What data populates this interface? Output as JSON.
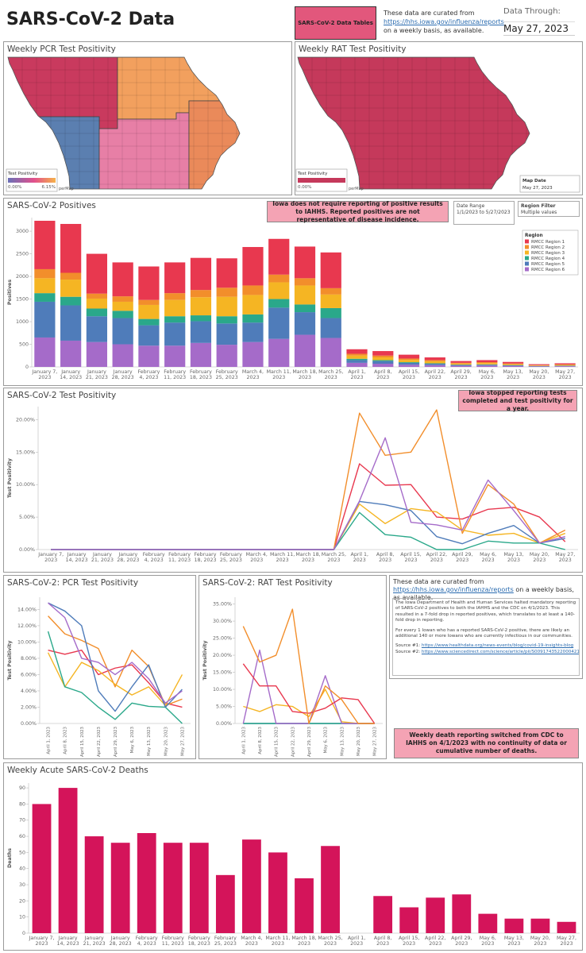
{
  "header": {
    "title": "SARS-CoV-2 Data",
    "button": "SARS-CoV-2 Data Tables",
    "intro": "These data are curated from",
    "link": "https://hhs.iowa.gov/influenza/reports",
    "intro_end": "on a weekly basis, as available.",
    "data_through_label": "Data Through:",
    "data_through": "May 27, 2023"
  },
  "maps": [
    {
      "title": "Weekly PCR Test Positivity",
      "legend_title": "Test Positivity",
      "legend_min": "0.00%",
      "legend_max": "6.15%",
      "attribution": "perMap"
    },
    {
      "title": "Weekly RAT Test Positivity",
      "legend_title": "Test Positivity",
      "legend_min": "0.00%",
      "attribution": "perMap",
      "map_date_label": "Map Date",
      "map_date": "May 27, 2023"
    }
  ],
  "filters": {
    "date_range_label": "Date Range",
    "date_range": "1/1/2023 to 5/27/2023",
    "region_filter_label": "Region Filter",
    "region_filter": "Multiple values"
  },
  "info": {
    "intro": "These data are curated from",
    "link": "https://hhs.iowa.gov/influenza/reports",
    "intro_end": "on a weekly basis, as available.",
    "paragraph1": "The Iowa Department of Health and Human Services halted mandatory reporting of SARS-CoV-2 positives to both the IAHHS and the CDC on 4/1/2023. This resulted in a 7-fold drop in reported positives, which translates to at least a 140-fold drop in reporting.",
    "paragraph2": "For every 1 Iowan who has a reported SARS-CoV-2 positive, there are likely an additional 140 or more Iowans who are currently infectious in our communities.",
    "source1_label": "Source #1:",
    "source1": "https://www.healthdata.org/news-events/blog/covid-19-insights-blog",
    "source2_label": "Source #2:",
    "source2": "https://www.sciencedirect.com/science/article/pii/S0091743522000421"
  },
  "chart_data": [
    {
      "type": "bar",
      "stacked": true,
      "title": "SARS-CoV-2 Positives",
      "y_label": "Positives",
      "annotation": "Iowa does not require reporting of positive results to IAHHS. Reported positives are not representative of disease incidence.",
      "legend_title": "Region",
      "categories": [
        "January 7, 2023",
        "January 14, 2023",
        "January 21, 2023",
        "January 28, 2023",
        "February 4, 2023",
        "February 11, 2023",
        "February 18, 2023",
        "February 25, 2023",
        "March 4, 2023",
        "March 11, 2023",
        "March 18, 2023",
        "March 25, 2023",
        "April 1, 2023",
        "April 8, 2023",
        "April 15, 2023",
        "April 22, 2023",
        "April 29, 2023",
        "May 6, 2023",
        "May 13, 2023",
        "May 20, 2023",
        "May 27, 2023"
      ],
      "series": [
        {
          "name": "RMCC Region 1",
          "color": "#e8384f",
          "values": [
            1070,
            1080,
            880,
            750,
            740,
            680,
            710,
            650,
            850,
            790,
            700,
            790,
            100,
            100,
            85,
            60,
            40,
            45,
            35,
            20,
            25
          ]
        },
        {
          "name": "RMCC Region 2",
          "color": "#f28e2b",
          "values": [
            200,
            150,
            110,
            120,
            110,
            150,
            160,
            200,
            210,
            170,
            160,
            140,
            40,
            40,
            30,
            25,
            15,
            20,
            15,
            9,
            12
          ]
        },
        {
          "name": "RMCC Region 3",
          "color": "#f5b523",
          "values": [
            330,
            380,
            220,
            200,
            310,
            360,
            400,
            430,
            430,
            370,
            420,
            300,
            70,
            60,
            50,
            45,
            25,
            30,
            20,
            10,
            15
          ]
        },
        {
          "name": "RMCC Region 4",
          "color": "#2aa88a",
          "values": [
            190,
            190,
            170,
            160,
            140,
            140,
            130,
            160,
            180,
            190,
            170,
            220,
            30,
            20,
            15,
            10,
            5,
            5,
            5,
            3,
            3
          ]
        },
        {
          "name": "RMCC Region 5",
          "color": "#4f7cba",
          "values": [
            790,
            780,
            570,
            580,
            450,
            510,
            480,
            470,
            430,
            690,
            500,
            440,
            60,
            60,
            40,
            30,
            20,
            20,
            15,
            8,
            10
          ]
        },
        {
          "name": "RMCC Region 6",
          "color": "#a56bc9",
          "values": [
            650,
            580,
            550,
            500,
            470,
            470,
            530,
            490,
            550,
            620,
            710,
            640,
            90,
            70,
            50,
            40,
            25,
            30,
            20,
            10,
            15
          ]
        }
      ],
      "ylim": [
        0,
        3300
      ],
      "yticks": [
        0,
        500,
        1000,
        1500,
        2000,
        2500,
        3000
      ]
    },
    {
      "type": "line",
      "title": "SARS-CoV-2 Test Positivity",
      "y_label": "Test Positivity",
      "annotation": "Iowa stopped reporting tests completed and test positivity for a year.",
      "categories": [
        "January 7, 2023",
        "January 14, 2023",
        "January 21, 2023",
        "January 28, 2023",
        "February 4, 2023",
        "February 11, 2023",
        "February 18, 2023",
        "February 25, 2023",
        "March 4, 2023",
        "March 11, 2023",
        "March 18, 2023",
        "March 25, 2023",
        "April 1, 2023",
        "April 8, 2023",
        "April 15, 2023",
        "April 22, 2023",
        "April 29, 2023",
        "May 6, 2023",
        "May 13, 2023",
        "May 20, 2023",
        "May 27, 2023"
      ],
      "series": [
        {
          "color": "#e8384f",
          "values": [
            0,
            0,
            0,
            0,
            0,
            0,
            0,
            0,
            0,
            0,
            0,
            0,
            13.2,
            9.9,
            10,
            5,
            4.7,
            6.2,
            6.5,
            5,
            1.2
          ]
        },
        {
          "color": "#f28e2b",
          "values": [
            0,
            0,
            0,
            0,
            0,
            0,
            0,
            0,
            0,
            0,
            0,
            0,
            21,
            14.5,
            15,
            21.5,
            2.5,
            10,
            7,
            1,
            3
          ]
        },
        {
          "color": "#f5b523",
          "values": [
            0,
            0,
            0,
            0,
            0,
            0,
            0,
            0,
            0,
            0,
            0,
            0,
            7,
            4,
            6.3,
            5.8,
            3,
            2.2,
            2.5,
            1,
            2.5
          ]
        },
        {
          "color": "#2aa88a",
          "values": [
            0,
            0,
            0,
            0,
            0,
            0,
            0,
            0,
            0,
            0,
            0,
            0,
            5.7,
            2.3,
            1.9,
            0,
            0,
            1.3,
            1,
            1,
            0
          ]
        },
        {
          "color": "#4f7cba",
          "values": [
            0,
            0,
            0,
            0,
            0,
            0,
            0,
            0,
            0,
            0,
            0,
            0,
            7.4,
            6.9,
            6,
            2,
            0.9,
            2.5,
            3.7,
            1,
            1.7
          ]
        },
        {
          "color": "#a56bc9",
          "values": [
            0,
            0,
            0,
            0,
            0,
            0,
            0,
            0,
            0,
            0,
            0,
            0,
            7.5,
            17.2,
            4.2,
            3.8,
            3,
            10.7,
            6,
            1,
            2
          ]
        }
      ],
      "ylim": [
        0,
        22
      ],
      "yticks": [
        {
          "value": 0,
          "label": "0.00%"
        },
        {
          "value": 5,
          "label": "5.00%"
        },
        {
          "value": 10,
          "label": "10.00%"
        },
        {
          "value": 15,
          "label": "15.00%"
        },
        {
          "value": 20,
          "label": "20.00%"
        }
      ]
    },
    {
      "type": "line",
      "title": "SARS-CoV-2: PCR Test Positivity",
      "y_label": "Test Positivity",
      "categories": [
        "April 1, 2023",
        "April 8, 2023",
        "April 15, 2023",
        "April 22, 2023",
        "April 29, 2023",
        "May 6, 2023",
        "May 13, 2023",
        "May 20, 2023",
        "May 27, 2023"
      ],
      "series": [
        {
          "color": "#e8384f",
          "values": [
            9,
            8.5,
            9,
            6,
            6.8,
            7.2,
            5,
            2.5,
            2
          ]
        },
        {
          "color": "#f28e2b",
          "values": [
            13.2,
            11,
            10.2,
            9.2,
            4.5,
            9,
            7,
            2.2,
            3
          ]
        },
        {
          "color": "#f5b523",
          "values": [
            8.7,
            4.5,
            7.5,
            6.5,
            4.8,
            3.5,
            4.5,
            2.2,
            6
          ]
        },
        {
          "color": "#2aa88a",
          "values": [
            11.3,
            4.5,
            3.8,
            2,
            0.5,
            2.5,
            2.1,
            2,
            0
          ]
        },
        {
          "color": "#4f7cba",
          "values": [
            14.8,
            13.8,
            12,
            4,
            1.5,
            4.5,
            7.2,
            2,
            4.2
          ]
        },
        {
          "color": "#a56bc9",
          "values": [
            14.8,
            13,
            8,
            7.5,
            6,
            7.5,
            5.5,
            2.5,
            4
          ]
        }
      ],
      "ylim": [
        0,
        15.5
      ],
      "yticks": [
        {
          "value": 0,
          "label": "0.00%"
        },
        {
          "value": 2,
          "label": "2.00%"
        },
        {
          "value": 4,
          "label": "4.00%"
        },
        {
          "value": 6,
          "label": "6.00%"
        },
        {
          "value": 8,
          "label": "8.00%"
        },
        {
          "value": 10,
          "label": "10.00%"
        },
        {
          "value": 12,
          "label": "12.00%"
        },
        {
          "value": 14,
          "label": "14.00%"
        }
      ]
    },
    {
      "type": "line",
      "title": "SARS-CoV-2: RAT Test Positivity",
      "y_label": "Test Positivity",
      "categories": [
        "April 1, 2023",
        "April 8, 2023",
        "April 15, 2023",
        "April 22, 2023",
        "April 29, 2023",
        "May 6, 2023",
        "May 13, 2023",
        "May 20, 2023",
        "May 27, 2023"
      ],
      "series": [
        {
          "color": "#4f7cba",
          "values": [
            0,
            0,
            0,
            0,
            0,
            0,
            0,
            0,
            0
          ]
        },
        {
          "color": "#2aa88a",
          "values": [
            0,
            0,
            0,
            0,
            0,
            0,
            0,
            0,
            0
          ]
        },
        {
          "color": "#f5b523",
          "values": [
            5,
            3.5,
            5.5,
            5,
            2,
            10,
            0.5,
            0,
            0
          ]
        },
        {
          "color": "#a56bc9",
          "values": [
            0,
            21.5,
            0,
            0,
            0,
            14,
            0,
            0,
            0
          ]
        },
        {
          "color": "#e8384f",
          "values": [
            17.5,
            11,
            11,
            3.5,
            3,
            4.5,
            7.5,
            7,
            0
          ]
        },
        {
          "color": "#f28e2b",
          "values": [
            28.5,
            18,
            20,
            33.5,
            0,
            11,
            7,
            0,
            0
          ]
        }
      ],
      "ylim": [
        0,
        37
      ],
      "yticks": [
        {
          "value": 0,
          "label": "0.00%"
        },
        {
          "value": 5,
          "label": "5.00%"
        },
        {
          "value": 10,
          "label": "10.00%"
        },
        {
          "value": 15,
          "label": "15.00%"
        },
        {
          "value": 20,
          "label": "20.00%"
        },
        {
          "value": 25,
          "label": "25.00%"
        },
        {
          "value": 30,
          "label": "30.00%"
        },
        {
          "value": 35,
          "label": "35.00%"
        }
      ]
    },
    {
      "type": "bar",
      "title": "Weekly Acute SARS-CoV-2 Deaths",
      "y_label": "Deaths",
      "annotation": "Weekly death reporting switched from CDC to IAHHS on 4/1/2023 with no continuity of data or cumulative number of deaths.",
      "categories": [
        "January 7, 2023",
        "January 14, 2023",
        "January 21, 2023",
        "January 28, 2023",
        "February 4, 2023",
        "February 11, 2023",
        "February 18, 2023",
        "February 25, 2023",
        "March 4, 2023",
        "March 11, 2023",
        "March 18, 2023",
        "March 25, 2023",
        "April 1, 2023",
        "April 8, 2023",
        "April 15, 2023",
        "April 22, 2023",
        "April 29, 2023",
        "May 6, 2023",
        "May 13, 2023",
        "May 20, 2023",
        "May 27, 2023"
      ],
      "color": "#d4145a",
      "values": [
        80,
        90,
        60,
        56,
        62,
        56,
        56,
        36,
        58,
        50,
        34,
        54,
        null,
        23,
        16,
        22,
        24,
        12,
        9,
        9,
        7
      ],
      "ylim": [
        0,
        93
      ],
      "yticks": [
        0,
        10,
        20,
        30,
        40,
        50,
        60,
        70,
        80,
        90
      ]
    }
  ]
}
